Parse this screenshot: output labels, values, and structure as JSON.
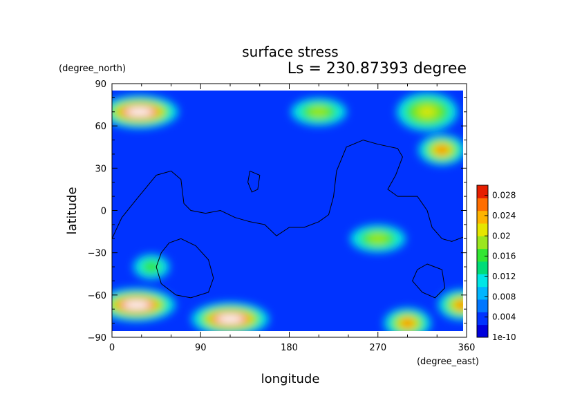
{
  "chart_data": {
    "type": "heatmap",
    "title": "surface stress",
    "subtitle": "Ls = 230.87393 degree",
    "xlabel": "longitude",
    "ylabel": "latitude",
    "x_unit": "(degree_east)",
    "y_unit": "(degree_north)",
    "xlim": [
      0,
      360
    ],
    "ylim": [
      -90,
      90
    ],
    "x_ticks": [
      "0",
      "90",
      "180",
      "270",
      "360"
    ],
    "y_ticks": [
      "90",
      "60",
      "30",
      "0",
      "−30",
      "−60",
      "−90"
    ],
    "colorbar": {
      "ticks": [
        "0.028",
        "0.024",
        "0.02",
        "0.016",
        "0.012",
        "0.008",
        "0.004",
        "1e-10"
      ],
      "range": [
        0,
        0.03
      ],
      "colors": [
        "#0000dc",
        "#0033ff",
        "#0077ff",
        "#00b5ff",
        "#00e6e6",
        "#00dc78",
        "#32e632",
        "#9be61e",
        "#e6e600",
        "#ffb400",
        "#ff6e00",
        "#e61e00"
      ]
    },
    "high_regions": [
      {
        "lon": 28,
        "lat": 70,
        "level": "max"
      },
      {
        "lon": 210,
        "lat": 70,
        "level": "medium"
      },
      {
        "lon": 335,
        "lat": 43,
        "level": "high"
      },
      {
        "lon": 320,
        "lat": 70,
        "level": "medium-high"
      },
      {
        "lon": 25,
        "lat": -67,
        "level": "max"
      },
      {
        "lon": 120,
        "lat": -77,
        "level": "max"
      },
      {
        "lon": 300,
        "lat": -80,
        "level": "high"
      },
      {
        "lon": 355,
        "lat": -67,
        "level": "high"
      },
      {
        "lon": 270,
        "lat": -20,
        "level": "medium"
      },
      {
        "lon": 40,
        "lat": -40,
        "level": "low-medium"
      }
    ],
    "contour_lines": [
      [
        [
          0,
          -20
        ],
        [
          10,
          -5
        ],
        [
          25,
          8
        ],
        [
          45,
          25
        ],
        [
          60,
          28
        ],
        [
          70,
          22
        ],
        [
          73,
          5
        ],
        [
          80,
          0
        ],
        [
          95,
          -2
        ],
        [
          110,
          0
        ],
        [
          125,
          -5
        ],
        [
          140,
          -8
        ],
        [
          155,
          -10
        ],
        [
          167,
          -18
        ],
        [
          180,
          -12
        ],
        [
          195,
          -12
        ],
        [
          210,
          -8
        ],
        [
          220,
          -3
        ],
        [
          225,
          10
        ],
        [
          228,
          28
        ],
        [
          238,
          45
        ],
        [
          255,
          50
        ],
        [
          270,
          47
        ],
        [
          290,
          44
        ],
        [
          295,
          38
        ],
        [
          288,
          25
        ],
        [
          280,
          15
        ],
        [
          290,
          10
        ],
        [
          310,
          10
        ],
        [
          320,
          0
        ],
        [
          325,
          -12
        ],
        [
          335,
          -20
        ],
        [
          345,
          -22
        ],
        [
          360,
          -18
        ]
      ],
      [
        [
          70,
          -20
        ],
        [
          85,
          -25
        ],
        [
          98,
          -35
        ],
        [
          103,
          -48
        ],
        [
          98,
          -58
        ],
        [
          80,
          -62
        ],
        [
          65,
          -60
        ],
        [
          50,
          -52
        ],
        [
          45,
          -40
        ],
        [
          50,
          -30
        ],
        [
          58,
          -23
        ],
        [
          70,
          -20
        ]
      ],
      [
        [
          140,
          28
        ],
        [
          150,
          25
        ],
        [
          148,
          15
        ],
        [
          142,
          13
        ],
        [
          138,
          20
        ],
        [
          140,
          28
        ]
      ],
      [
        [
          320,
          -38
        ],
        [
          335,
          -42
        ],
        [
          338,
          -55
        ],
        [
          328,
          -62
        ],
        [
          315,
          -58
        ],
        [
          305,
          -50
        ],
        [
          310,
          -42
        ],
        [
          320,
          -38
        ]
      ]
    ]
  }
}
